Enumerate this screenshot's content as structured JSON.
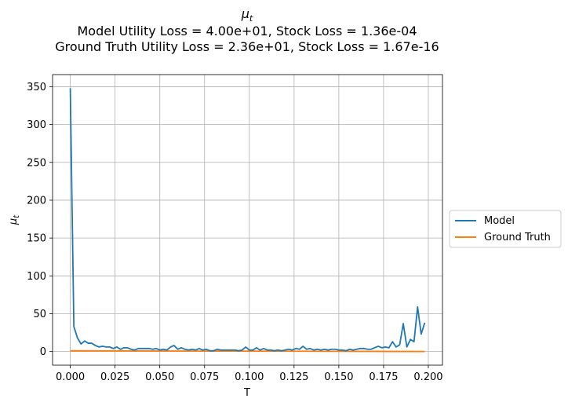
{
  "chart_data": {
    "type": "line",
    "title_symbol": "μ",
    "title_symbol_sub": "t",
    "title_line2": "Model Utility Loss = 4.00e+01, Stock Loss = 1.36e-04",
    "title_line3": "Ground Truth Utility Loss = 2.36e+01, Stock Loss = 1.67e-16",
    "xlabel": "T",
    "ylabel_symbol": "μ",
    "ylabel_sub": "t",
    "xlim": [
      -0.0099,
      0.2079
    ],
    "ylim": [
      -18,
      366
    ],
    "xticks": [
      0.0,
      0.025,
      0.05,
      0.075,
      0.1,
      0.125,
      0.15,
      0.175,
      0.2
    ],
    "xtick_labels": [
      "0.000",
      "0.025",
      "0.050",
      "0.075",
      "0.100",
      "0.125",
      "0.150",
      "0.175",
      "0.200"
    ],
    "yticks": [
      0,
      50,
      100,
      150,
      200,
      250,
      300,
      350
    ],
    "ytick_labels": [
      "0",
      "50",
      "100",
      "150",
      "200",
      "250",
      "300",
      "350"
    ],
    "grid": true,
    "legend_position": "center-right outside",
    "series": [
      {
        "name": "Model",
        "color": "#1f77b4",
        "x": [
          0.0,
          0.002,
          0.004,
          0.006,
          0.008,
          0.01,
          0.012,
          0.014,
          0.016,
          0.018,
          0.02,
          0.022,
          0.024,
          0.026,
          0.028,
          0.03,
          0.032,
          0.034,
          0.036,
          0.038,
          0.04,
          0.042,
          0.044,
          0.046,
          0.048,
          0.05,
          0.052,
          0.054,
          0.056,
          0.058,
          0.06,
          0.062,
          0.064,
          0.066,
          0.068,
          0.07,
          0.072,
          0.074,
          0.076,
          0.078,
          0.08,
          0.082,
          0.084,
          0.086,
          0.088,
          0.09,
          0.092,
          0.094,
          0.096,
          0.098,
          0.1,
          0.102,
          0.104,
          0.106,
          0.108,
          0.11,
          0.112,
          0.114,
          0.116,
          0.118,
          0.12,
          0.122,
          0.124,
          0.126,
          0.128,
          0.13,
          0.132,
          0.134,
          0.136,
          0.138,
          0.14,
          0.142,
          0.144,
          0.146,
          0.148,
          0.15,
          0.152,
          0.154,
          0.156,
          0.158,
          0.16,
          0.162,
          0.164,
          0.166,
          0.168,
          0.17,
          0.172,
          0.174,
          0.176,
          0.178,
          0.18,
          0.182,
          0.184,
          0.186,
          0.188,
          0.19,
          0.192,
          0.194,
          0.196,
          0.198
        ],
        "y": [
          348,
          33,
          18,
          10,
          14,
          11,
          11,
          8,
          6,
          7,
          6,
          6,
          4,
          6,
          3,
          5,
          5,
          3,
          2,
          4,
          4,
          4,
          4,
          3,
          4,
          2,
          3,
          2,
          6,
          8,
          3,
          5,
          3,
          2,
          3,
          2,
          4,
          2,
          3,
          1,
          1,
          3,
          2,
          2,
          2,
          2,
          2,
          1,
          2,
          6,
          2,
          2,
          5,
          2,
          4,
          2,
          2,
          1,
          2,
          1,
          2,
          3,
          2,
          4,
          3,
          7,
          3,
          4,
          2,
          3,
          2,
          3,
          2,
          3,
          3,
          2,
          2,
          1,
          3,
          2,
          3,
          4,
          4,
          3,
          3,
          5,
          7,
          5,
          6,
          5,
          13,
          6,
          9,
          37,
          6,
          16,
          13,
          59,
          23,
          38
        ]
      },
      {
        "name": "Ground Truth",
        "color": "#ff7f0e",
        "x": [
          0.0,
          0.01,
          0.02,
          0.03,
          0.04,
          0.05,
          0.06,
          0.07,
          0.08,
          0.09,
          0.1,
          0.11,
          0.12,
          0.13,
          0.14,
          0.15,
          0.16,
          0.17,
          0.18,
          0.19,
          0.198
        ],
        "y": [
          1.0,
          1.0,
          0.9,
          0.9,
          0.8,
          0.8,
          0.7,
          0.7,
          0.6,
          0.6,
          0.5,
          0.5,
          0.4,
          0.4,
          0.3,
          0.3,
          0.2,
          0.2,
          0.1,
          0.1,
          0.0
        ]
      }
    ]
  }
}
